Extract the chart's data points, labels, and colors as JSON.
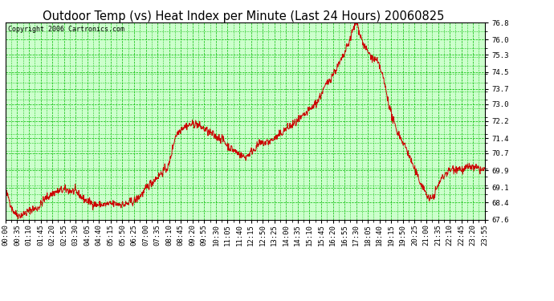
{
  "title": "Outdoor Temp (vs) Heat Index per Minute (Last 24 Hours) 20060825",
  "copyright": "Copyright 2006 Cartronics.com",
  "bg_color": "#ffffff",
  "plot_bg_color": "#ccffcc",
  "line_color": "#cc0000",
  "grid_color": "#00bb00",
  "border_color": "#000000",
  "yticks": [
    67.6,
    68.4,
    69.1,
    69.9,
    70.7,
    71.4,
    72.2,
    73.0,
    73.7,
    74.5,
    75.3,
    76.0,
    76.8
  ],
  "ylim": [
    67.6,
    76.8
  ],
  "xtick_labels": [
    "00:00",
    "00:35",
    "01:10",
    "01:45",
    "02:20",
    "02:55",
    "03:30",
    "04:05",
    "04:40",
    "05:15",
    "05:50",
    "06:25",
    "07:00",
    "07:35",
    "08:10",
    "08:45",
    "09:20",
    "09:55",
    "10:30",
    "11:05",
    "11:40",
    "12:15",
    "12:50",
    "13:25",
    "14:00",
    "14:35",
    "15:10",
    "15:45",
    "16:20",
    "16:55",
    "17:30",
    "18:05",
    "18:40",
    "19:15",
    "19:50",
    "20:25",
    "21:00",
    "21:35",
    "22:10",
    "22:45",
    "23:20",
    "23:55"
  ],
  "title_fontsize": 10.5,
  "tick_fontsize": 6.5,
  "copyright_fontsize": 6
}
